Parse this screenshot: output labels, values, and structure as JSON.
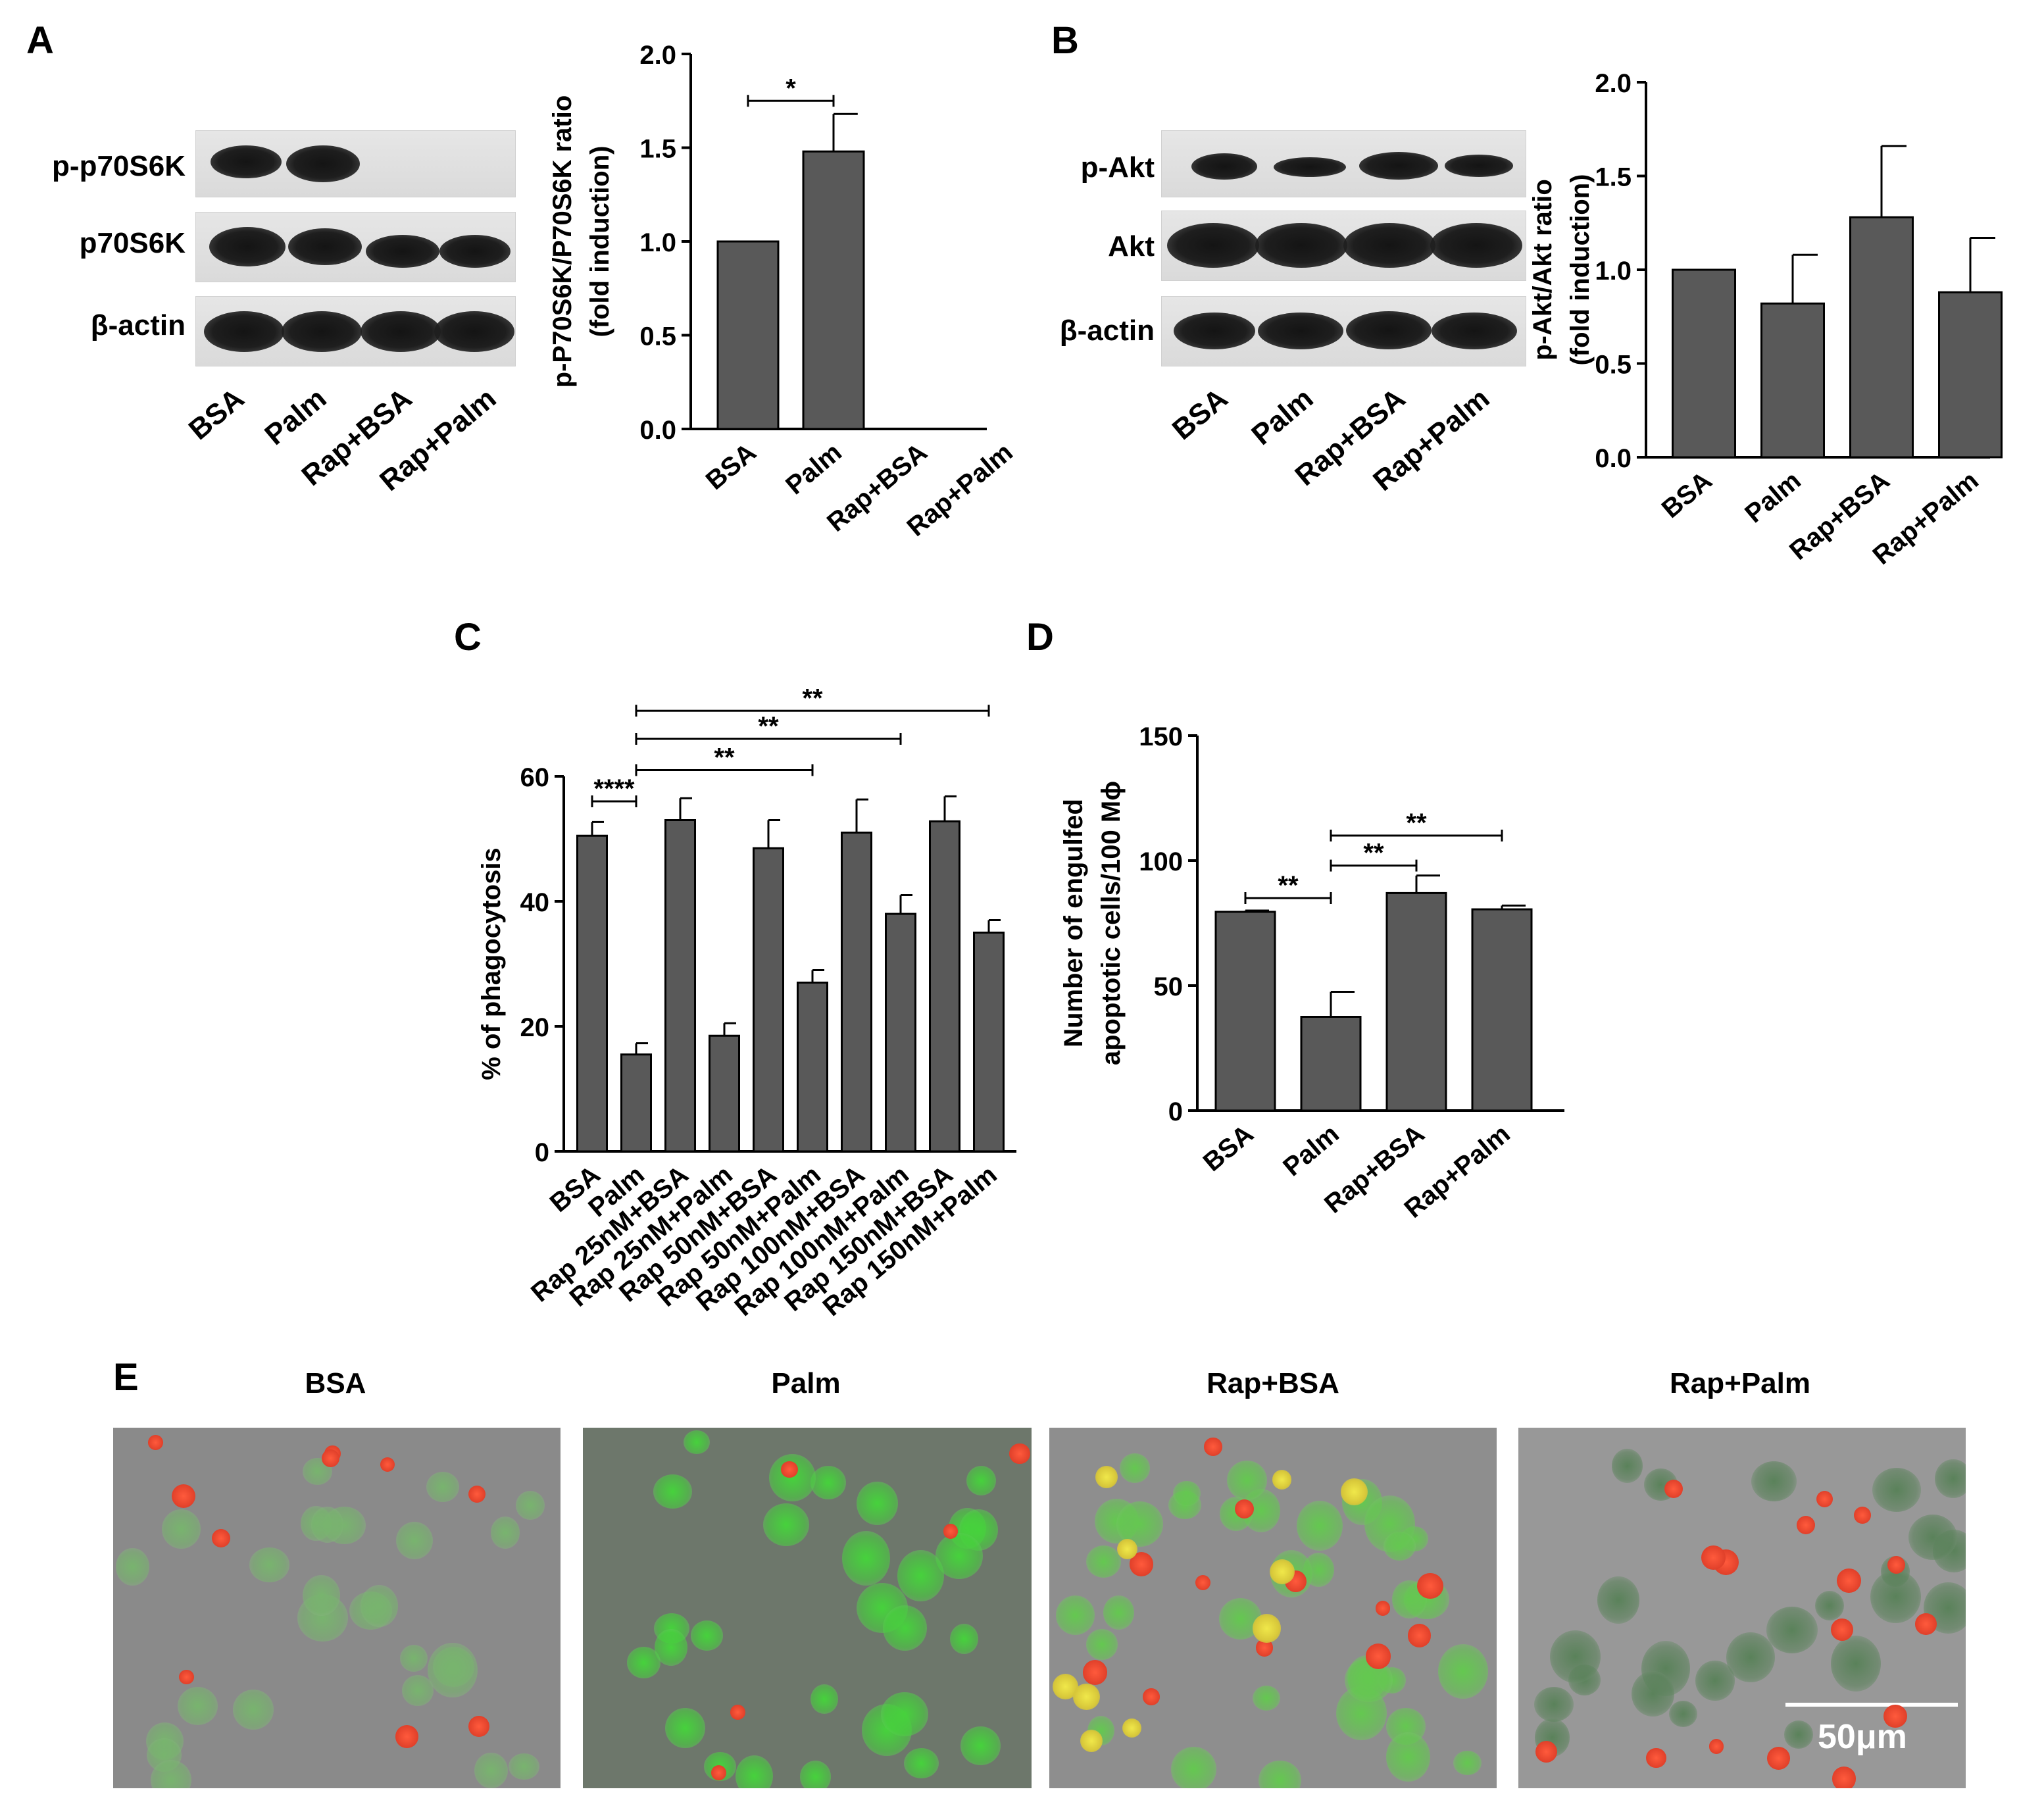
{
  "panels": {
    "A": {
      "letter": "A",
      "blot": {
        "rows": [
          {
            "label": "p-p70S6K",
            "bands": [
              1,
              1,
              0,
              0
            ]
          },
          {
            "label": "p70S6K",
            "bands": [
              1,
              1,
              1,
              1
            ]
          },
          {
            "label": "β-actin",
            "bands": [
              1,
              1,
              1,
              1
            ]
          }
        ],
        "lanes": [
          "BSA",
          "Palm",
          "Rap+BSA",
          "Rap+Palm"
        ]
      }
    },
    "B": {
      "letter": "B",
      "blot": {
        "rows": [
          {
            "label": "p-Akt",
            "bands": [
              1,
              0.7,
              1,
              0.8
            ]
          },
          {
            "label": "Akt",
            "bands": [
              1,
              1,
              1,
              1
            ]
          },
          {
            "label": "β-actin",
            "bands": [
              1,
              1,
              1,
              1
            ]
          }
        ],
        "lanes": [
          "BSA",
          "Palm",
          "Rap+BSA",
          "Rap+Palm"
        ]
      }
    },
    "C": {
      "letter": "C"
    },
    "D": {
      "letter": "D"
    },
    "E": {
      "letter": "E",
      "images": [
        {
          "title": "BSA"
        },
        {
          "title": "Palm"
        },
        {
          "title": "Rap+BSA"
        },
        {
          "title": "Rap+Palm",
          "scale_bar": "50μm"
        }
      ]
    }
  },
  "chart_data": [
    {
      "panel": "A",
      "type": "bar",
      "categories": [
        "BSA",
        "Palm",
        "Rap+BSA",
        "Rap+Palm"
      ],
      "values": [
        1.0,
        1.48,
        0,
        0
      ],
      "errors": [
        0,
        0.2,
        0,
        0
      ],
      "ylabel_lines": [
        "p-P70S6K/P70S6K ratio",
        "(fold induction)"
      ],
      "ylim": [
        0,
        2.0
      ],
      "yticks": [
        "0.0",
        "0.5",
        "1.0",
        "1.5",
        "2.0"
      ],
      "significance": [
        {
          "from": 0,
          "to": 1,
          "label": "*",
          "level": 1.75
        }
      ],
      "bar_color": "#595959"
    },
    {
      "panel": "B",
      "type": "bar",
      "categories": [
        "BSA",
        "Palm",
        "Rap+BSA",
        "Rap+Palm"
      ],
      "values": [
        1.0,
        0.82,
        1.28,
        0.88
      ],
      "errors": [
        0,
        0.26,
        0.38,
        0.29
      ],
      "ylabel_lines": [
        "p-Akt/Akt ratio",
        "(fold induction)"
      ],
      "ylim": [
        0,
        2.0
      ],
      "yticks": [
        "0.0",
        "0.5",
        "1.0",
        "1.5",
        "2.0"
      ],
      "significance": [],
      "bar_color": "#595959"
    },
    {
      "panel": "C",
      "type": "bar",
      "categories": [
        "BSA",
        "Palm",
        "Rap 25nM+BSA",
        "Rap 25nM+Palm",
        "Rap 50nM+BSA",
        "Rap 50nM+Palm",
        "Rap 100nM+BSA",
        "Rap 100nM+Palm",
        "Rap 150nM+BSA",
        "Rap 150nM+Palm"
      ],
      "values": [
        50.5,
        15.5,
        53.0,
        18.5,
        48.5,
        27.0,
        51.0,
        38.0,
        52.8,
        35.0
      ],
      "errors": [
        2.2,
        1.8,
        3.5,
        2.0,
        4.5,
        2.0,
        5.3,
        3.0,
        4.0,
        2.0
      ],
      "ylabel_lines": [
        "% of phagocytosis"
      ],
      "ylim": [
        0,
        60
      ],
      "yticks": [
        "0",
        "20",
        "40",
        "60"
      ],
      "significance": [
        {
          "from": 0,
          "to": 1,
          "label": "****",
          "level": 56
        },
        {
          "from": 1,
          "to": 5,
          "label": "**",
          "level": 61
        },
        {
          "from": 1,
          "to": 7,
          "label": "**",
          "level": 66
        },
        {
          "from": 1,
          "to": 9,
          "label": "**",
          "level": 70.5
        }
      ],
      "bar_color": "#595959"
    },
    {
      "panel": "D",
      "type": "bar",
      "categories": [
        "BSA",
        "Palm",
        "Rap+BSA",
        "Rap+Palm"
      ],
      "values": [
        79.5,
        37.5,
        87.0,
        80.5
      ],
      "errors": [
        0.5,
        10.0,
        7.0,
        1.5
      ],
      "ylabel_lines": [
        "Number of engulfed",
        "apoptotic cells/100 Mϕ"
      ],
      "ylim": [
        0,
        150
      ],
      "yticks": [
        "0",
        "50",
        "100",
        "150"
      ],
      "significance": [
        {
          "from": 0,
          "to": 1,
          "label": "**",
          "level": 85
        },
        {
          "from": 1,
          "to": 2,
          "label": "**",
          "level": 98
        },
        {
          "from": 1,
          "to": 3,
          "label": "**",
          "level": 110
        }
      ],
      "bar_color": "#595959"
    }
  ]
}
